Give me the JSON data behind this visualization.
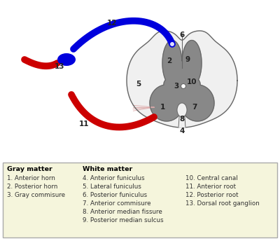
{
  "bg_color": "#ffffff",
  "legend_bg": "#f5f5dc",
  "legend_border": "#aaaaaa",
  "gray_matter_color": "#888888",
  "white_cord_color": "#f0f0f0",
  "outline_color": "#666666",
  "blue_color": "#0000dd",
  "red_color": "#cc0000",
  "number_color": "#222222",
  "fascicle_color": "#ddaaaa",
  "figsize": [
    4.0,
    3.44
  ],
  "dpi": 100,
  "gray_matter_items": [
    "1. Anterior horn",
    "2. Posterior horn",
    "3. Gray commisure"
  ],
  "white_matter_items": [
    "4. Anterior funiculus",
    "5. Lateral funiculus",
    "6. Posterior funiculus",
    "7. Anterior commisure",
    "8. Anterior median fissure",
    "9. Posterior median sulcus"
  ],
  "other_items": [
    "10. Central canal",
    "11. Anterior root",
    "12. Posterior root",
    "13. Dorsal root ganglion"
  ]
}
